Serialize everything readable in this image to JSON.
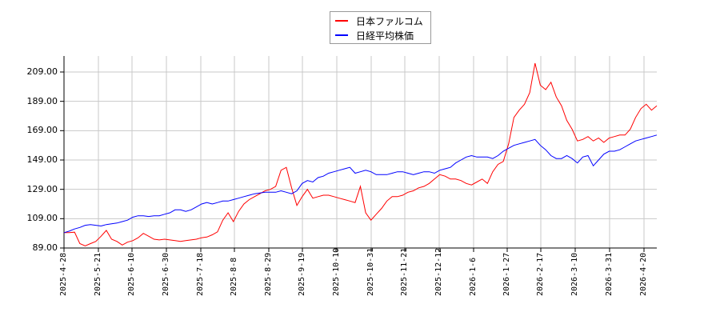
{
  "legend": {
    "items": [
      {
        "label": "日本ファルコム",
        "color": "#ff0000"
      },
      {
        "label": "日経平均株価",
        "color": "#0000ff"
      }
    ]
  },
  "chart_data": {
    "type": "line",
    "title": "",
    "xlabel": "",
    "ylabel": "",
    "ylim": [
      89,
      221
    ],
    "grid": true,
    "legend_position": "top-center",
    "y_ticks": [
      "89.00",
      "109.00",
      "129.00",
      "149.00",
      "169.00",
      "189.00",
      "209.00"
    ],
    "x_ticks": [
      "2025-4-28",
      "2025-5-21",
      "2025-6-10",
      "2025-6-30",
      "2025-7-18",
      "2025-8-8",
      "2025-8-29",
      "2025-9-19",
      "2025-10-10",
      "2025-10-31",
      "2025-11-21",
      "2025-12-12",
      "2026-1-6",
      "2026-1-27",
      "2026-2-17",
      "2026-3-10",
      "2026-3-31",
      "2026-4-20"
    ],
    "series": [
      {
        "name": "日本ファルコム",
        "color": "#ff0000",
        "values": [
          99.5,
          99.5,
          99.8,
          92,
          90.5,
          92,
          93.5,
          97,
          101,
          95,
          93.5,
          91,
          93,
          94,
          96,
          99,
          97,
          95,
          94.5,
          95,
          94.5,
          94,
          93.5,
          94,
          94.5,
          95,
          96,
          96.5,
          98,
          100,
          108,
          113,
          107,
          114,
          119,
          122,
          124,
          126,
          128,
          129,
          131,
          142,
          144,
          130,
          118,
          124,
          129,
          123,
          124,
          125,
          125,
          124,
          123,
          122,
          121,
          120,
          131,
          113,
          108,
          112,
          116,
          121,
          124,
          124,
          125,
          127,
          128,
          130,
          131,
          133,
          136,
          139,
          138,
          136,
          136,
          135,
          133,
          132,
          134,
          136,
          133,
          141,
          146,
          148,
          160,
          178,
          183,
          187,
          195,
          215,
          200,
          197,
          202,
          192,
          186,
          176,
          170,
          162,
          163,
          165,
          162,
          164,
          161,
          164,
          165,
          166,
          166,
          170,
          178,
          184,
          187,
          183,
          186
        ],
        "ylim_note": "approx values read from pixel positions"
      },
      {
        "name": "日経平均株価",
        "color": "#0000ff",
        "values": [
          99.5,
          100.5,
          102,
          103,
          104.5,
          105,
          104.5,
          104,
          105,
          105.5,
          106,
          107,
          108,
          110,
          111,
          111,
          110.5,
          111,
          111,
          112,
          113,
          115,
          115,
          114,
          115,
          117,
          119,
          120,
          119,
          120,
          121,
          121,
          122,
          123,
          124,
          125,
          126,
          126.5,
          127,
          127,
          127,
          128,
          127,
          126,
          128,
          133,
          135,
          134,
          137,
          138,
          140,
          141,
          142,
          143,
          144,
          140,
          141,
          142,
          141,
          139,
          139,
          139,
          140,
          141,
          141,
          140,
          139,
          140,
          141,
          141,
          140,
          142,
          143,
          144,
          147,
          149,
          151,
          152,
          151,
          151,
          151,
          150,
          152,
          155,
          157,
          159,
          160,
          161,
          162,
          163,
          159,
          156,
          152,
          150,
          150,
          152,
          150,
          147,
          151,
          152,
          145,
          149,
          153,
          155,
          155,
          156,
          158,
          160,
          162,
          163,
          164,
          165,
          166
        ]
      }
    ]
  }
}
